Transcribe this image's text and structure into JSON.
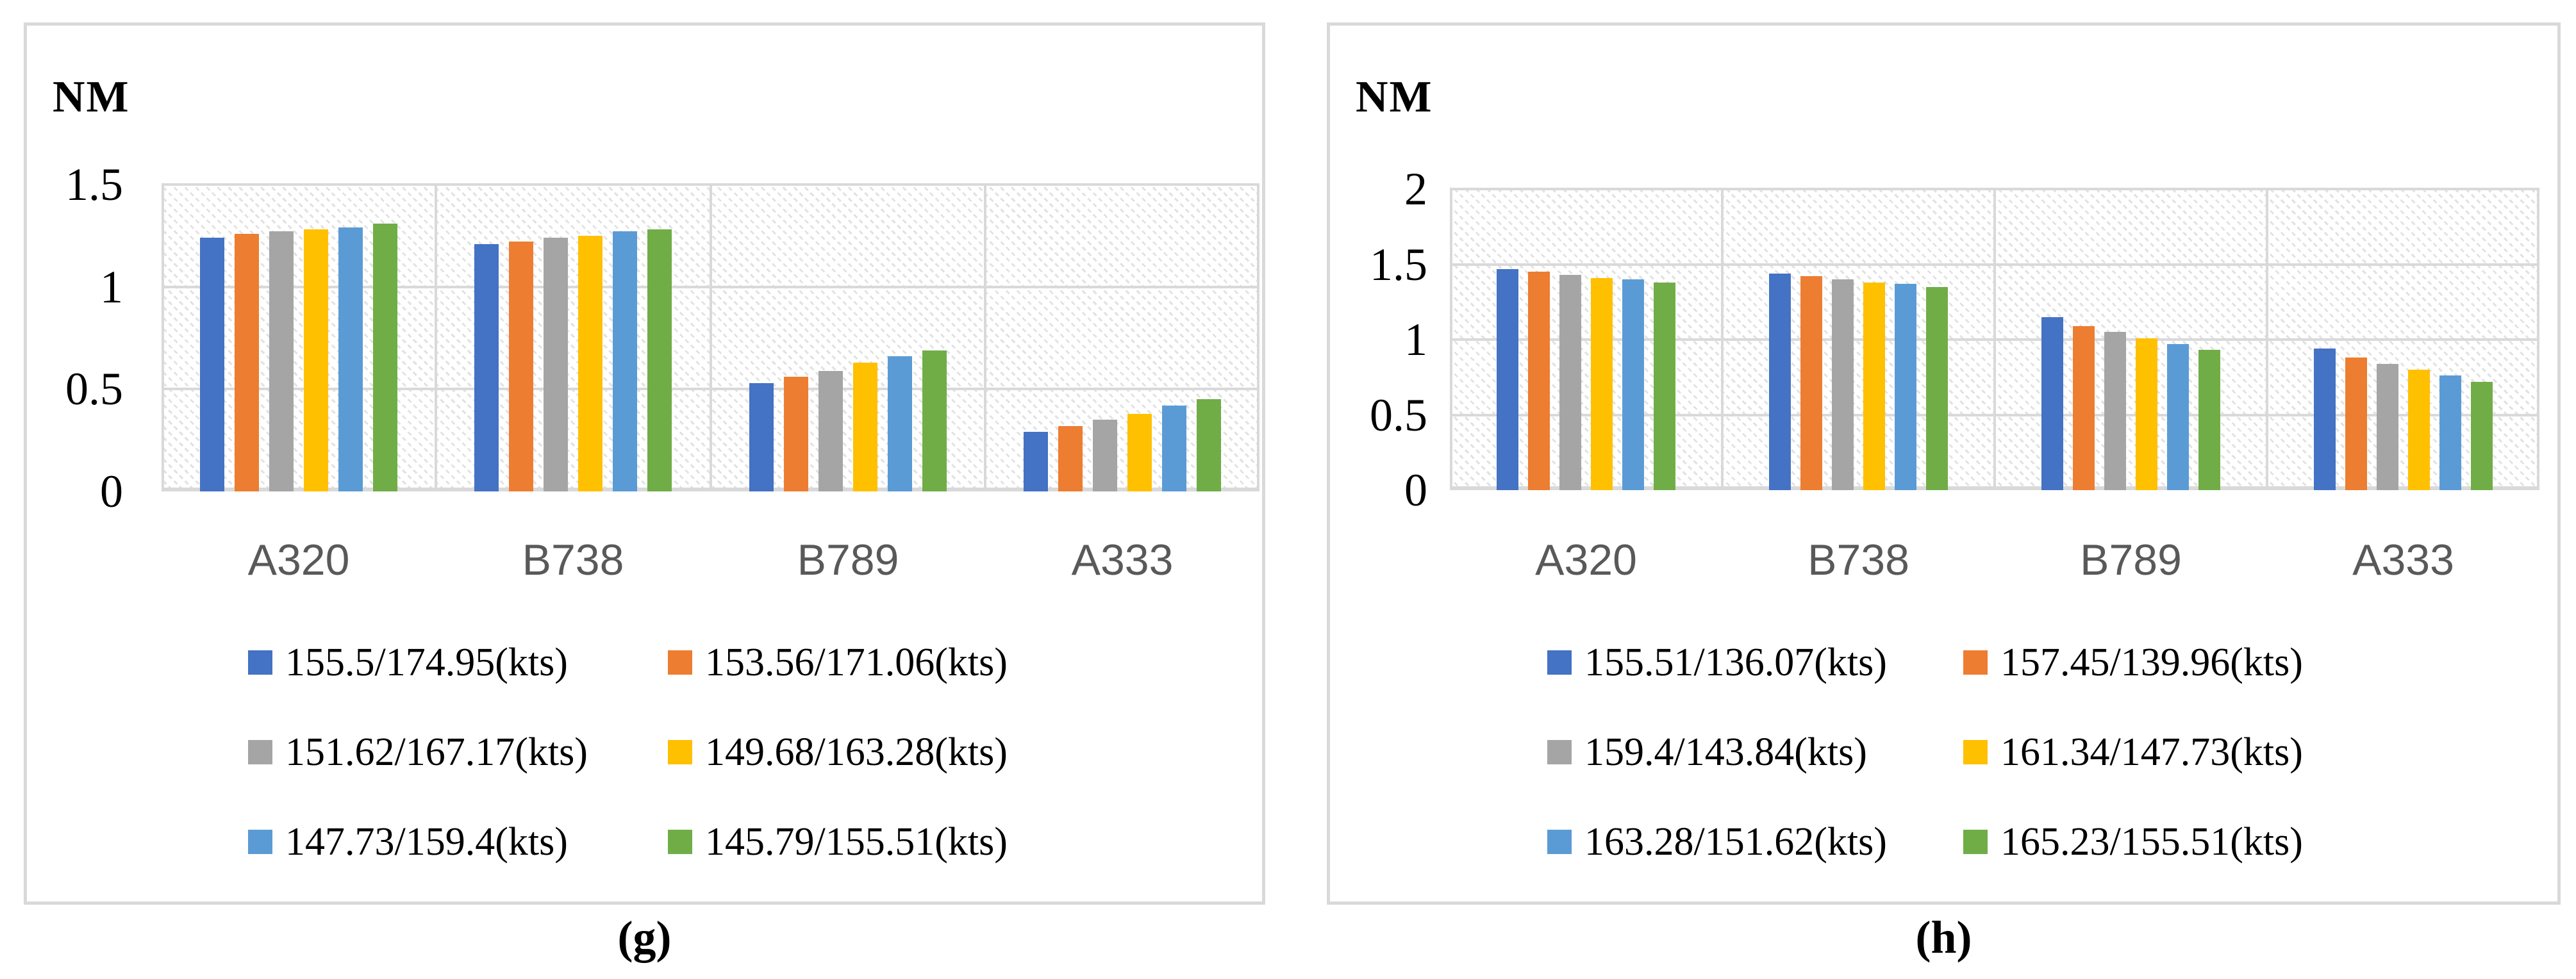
{
  "chart_data": [
    {
      "type": "bar",
      "panel": "g",
      "caption": "(g)",
      "ylabel": "NM",
      "categories": [
        "A320",
        "B738",
        "B789",
        "A333"
      ],
      "ylim": [
        0,
        1.5
      ],
      "yticks": [
        0,
        0.5,
        1,
        1.5
      ],
      "grid": true,
      "hatch_background": true,
      "grid_color": "#d9d9d9",
      "category_label_color": "#595959",
      "legend_position": "bottom-two-columns",
      "series": [
        {
          "name": "155.5/174.95(kts)",
          "color": "#4472C4",
          "values": [
            1.24,
            1.21,
            0.53,
            0.29
          ]
        },
        {
          "name": "153.56/171.06(kts)",
          "color": "#ED7D31",
          "values": [
            1.26,
            1.22,
            0.56,
            0.32
          ]
        },
        {
          "name": "151.62/167.17(kts)",
          "color": "#A5A5A5",
          "values": [
            1.27,
            1.24,
            0.59,
            0.35
          ]
        },
        {
          "name": "149.68/163.28(kts)",
          "color": "#FFC000",
          "values": [
            1.28,
            1.25,
            0.63,
            0.38
          ]
        },
        {
          "name": "147.73/159.4(kts)",
          "color": "#5B9BD5",
          "values": [
            1.29,
            1.27,
            0.66,
            0.42
          ]
        },
        {
          "name": "145.79/155.51(kts)",
          "color": "#70AD47",
          "values": [
            1.31,
            1.28,
            0.69,
            0.45
          ]
        }
      ]
    },
    {
      "type": "bar",
      "panel": "h",
      "caption": "(h)",
      "ylabel": "NM",
      "categories": [
        "A320",
        "B738",
        "B789",
        "A333"
      ],
      "ylim": [
        0,
        2
      ],
      "yticks": [
        0,
        0.5,
        1,
        1.5,
        2
      ],
      "grid": true,
      "hatch_background": true,
      "grid_color": "#d9d9d9",
      "category_label_color": "#595959",
      "legend_position": "bottom-two-columns",
      "series": [
        {
          "name": "155.51/136.07(kts)",
          "color": "#4472C4",
          "values": [
            1.47,
            1.44,
            1.15,
            0.94
          ]
        },
        {
          "name": "157.45/139.96(kts)",
          "color": "#ED7D31",
          "values": [
            1.45,
            1.42,
            1.09,
            0.88
          ]
        },
        {
          "name": "159.4/143.84(kts)",
          "color": "#A5A5A5",
          "values": [
            1.43,
            1.4,
            1.05,
            0.84
          ]
        },
        {
          "name": "161.34/147.73(kts)",
          "color": "#FFC000",
          "values": [
            1.41,
            1.38,
            1.01,
            0.8
          ]
        },
        {
          "name": "163.28/151.62(kts)",
          "color": "#5B9BD5",
          "values": [
            1.4,
            1.37,
            0.97,
            0.76
          ]
        },
        {
          "name": "165.23/155.51(kts)",
          "color": "#70AD47",
          "values": [
            1.38,
            1.35,
            0.93,
            0.72
          ]
        }
      ]
    }
  ]
}
